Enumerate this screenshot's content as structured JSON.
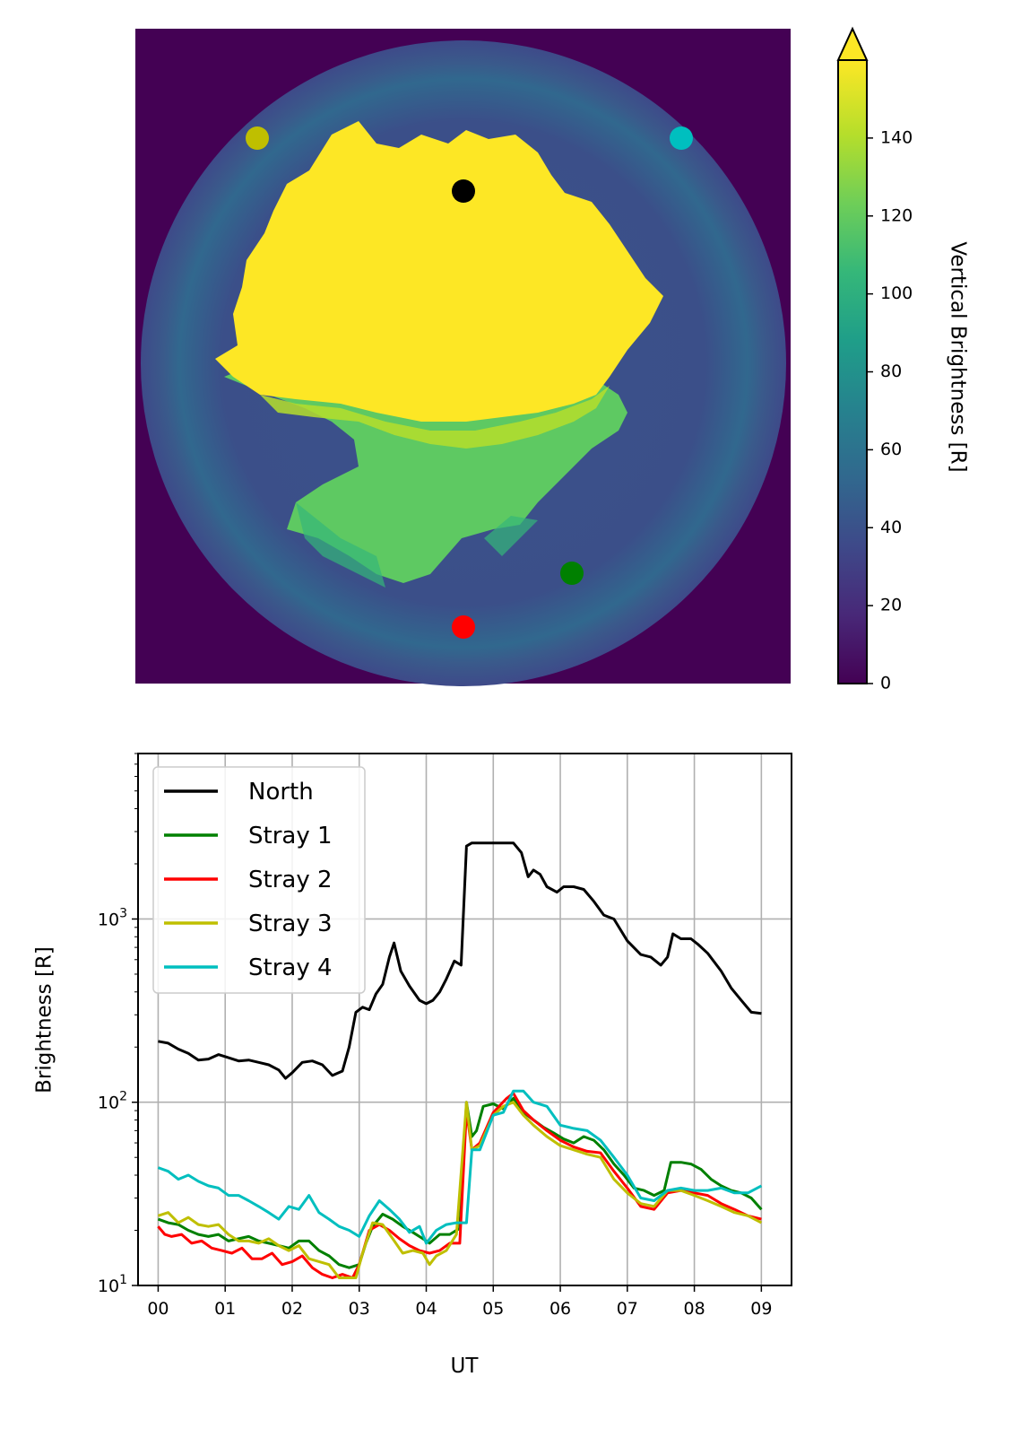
{
  "image_panel": {
    "colorbar": {
      "label": "Vertical Brightness [R]",
      "ticks": [
        0,
        20,
        40,
        60,
        80,
        100,
        120,
        140
      ],
      "range": [
        0,
        160
      ],
      "extend": "max",
      "colormap": [
        "#440154",
        "#482878",
        "#3e4989",
        "#31688e",
        "#26828e",
        "#1f9e89",
        "#35b779",
        "#6ece58",
        "#b5de2b",
        "#fde725"
      ]
    },
    "markers": [
      {
        "name": "North",
        "color": "#000000"
      },
      {
        "name": "Stray 1",
        "color": "#008000"
      },
      {
        "name": "Stray 2",
        "color": "#ff0000"
      },
      {
        "name": "Stray 3",
        "color": "#bfbf00"
      },
      {
        "name": "Stray 4",
        "color": "#00bfbf"
      }
    ]
  },
  "chart_data": {
    "type": "line",
    "xlabel": "UT",
    "ylabel": "Brightness [R]",
    "yscale": "log",
    "ylim": [
      10,
      8000
    ],
    "xlim": [
      -0.3,
      9.45
    ],
    "xticks": [
      "00",
      "01",
      "02",
      "03",
      "04",
      "05",
      "06",
      "07",
      "08",
      "09"
    ],
    "yticks": [
      {
        "value": 10,
        "base": "10",
        "exp": "1"
      },
      {
        "value": 100,
        "base": "10",
        "exp": "2"
      },
      {
        "value": 1000,
        "base": "10",
        "exp": "3"
      }
    ],
    "grid": true,
    "legend": "upper left",
    "series": [
      {
        "name": "North",
        "color": "#000000",
        "x": [
          0,
          0.15,
          0.3,
          0.45,
          0.6,
          0.75,
          0.9,
          1.05,
          1.2,
          1.35,
          1.5,
          1.65,
          1.8,
          1.9,
          2.0,
          2.15,
          2.3,
          2.45,
          2.6,
          2.75,
          2.85,
          2.95,
          3.05,
          3.15,
          3.25,
          3.35,
          3.45,
          3.52,
          3.62,
          3.75,
          3.9,
          4.0,
          4.1,
          4.2,
          4.3,
          4.42,
          4.52,
          4.6,
          4.68,
          4.8,
          5.0,
          5.2,
          5.3,
          5.42,
          5.52,
          5.6,
          5.7,
          5.8,
          5.95,
          6.05,
          6.2,
          6.35,
          6.5,
          6.65,
          6.8,
          7.0,
          7.2,
          7.35,
          7.5,
          7.6,
          7.68,
          7.8,
          7.95,
          8.05,
          8.2,
          8.4,
          8.55,
          8.7,
          8.85,
          9.0
        ],
        "y": [
          215,
          210,
          195,
          185,
          170,
          172,
          182,
          175,
          168,
          170,
          165,
          160,
          150,
          135,
          145,
          165,
          168,
          160,
          140,
          148,
          200,
          310,
          330,
          320,
          390,
          440,
          620,
          740,
          520,
          430,
          360,
          345,
          360,
          400,
          470,
          590,
          560,
          2500,
          2600,
          2600,
          2600,
          2600,
          2600,
          2300,
          1700,
          1850,
          1750,
          1500,
          1400,
          1500,
          1500,
          1450,
          1250,
          1050,
          1000,
          760,
          640,
          620,
          560,
          620,
          830,
          780,
          780,
          730,
          650,
          520,
          420,
          360,
          310,
          305
        ]
      },
      {
        "name": "Stray 1",
        "color": "#008000",
        "x": [
          0,
          0.15,
          0.3,
          0.45,
          0.6,
          0.75,
          0.9,
          1.05,
          1.2,
          1.35,
          1.5,
          1.65,
          1.8,
          1.95,
          2.1,
          2.25,
          2.4,
          2.55,
          2.7,
          2.85,
          3.0,
          3.1,
          3.2,
          3.35,
          3.5,
          3.65,
          3.8,
          3.95,
          4.05,
          4.2,
          4.35,
          4.5,
          4.6,
          4.68,
          4.75,
          4.85,
          5.0,
          5.15,
          5.3,
          5.45,
          5.6,
          5.75,
          5.9,
          6.05,
          6.2,
          6.35,
          6.5,
          6.65,
          6.8,
          6.95,
          7.1,
          7.25,
          7.4,
          7.55,
          7.65,
          7.8,
          7.95,
          8.1,
          8.25,
          8.4,
          8.55,
          8.7,
          8.85,
          9.0
        ],
        "y": [
          23,
          22,
          21.5,
          20,
          19,
          18.5,
          19,
          17.5,
          18,
          18.5,
          17.5,
          17,
          16.5,
          16,
          17.5,
          17.5,
          15.5,
          14.5,
          13,
          12.5,
          13,
          17,
          21,
          24.5,
          23,
          21,
          19.5,
          18,
          17,
          19,
          19,
          20.5,
          100,
          65,
          70,
          95,
          98,
          92,
          105,
          88,
          80,
          73,
          68,
          63,
          60,
          65,
          62,
          55,
          46,
          40,
          34,
          33,
          31,
          33,
          47,
          47,
          46,
          43,
          38,
          35,
          33,
          32,
          30,
          26
        ]
      },
      {
        "name": "Stray 2",
        "color": "#ff0000",
        "x": [
          0,
          0.1,
          0.2,
          0.35,
          0.5,
          0.65,
          0.8,
          0.95,
          1.1,
          1.25,
          1.4,
          1.55,
          1.7,
          1.85,
          2.0,
          2.15,
          2.3,
          2.45,
          2.6,
          2.75,
          2.9,
          3.0,
          3.15,
          3.3,
          3.45,
          3.6,
          3.75,
          3.9,
          4.05,
          4.2,
          4.35,
          4.5,
          4.6,
          4.68,
          4.8,
          5.0,
          5.2,
          5.3,
          5.45,
          5.6,
          5.8,
          6.0,
          6.2,
          6.4,
          6.6,
          6.8,
          7.0,
          7.2,
          7.4,
          7.6,
          7.8,
          8.0,
          8.2,
          8.4,
          8.6,
          8.8,
          9.0
        ],
        "y": [
          21,
          19,
          18.5,
          19,
          17,
          17.5,
          16,
          15.5,
          15,
          16,
          14,
          14,
          15,
          13,
          13.5,
          14.5,
          12.5,
          11.5,
          11,
          11.5,
          11,
          13,
          20,
          21.5,
          20,
          18,
          16.5,
          15.5,
          15,
          15.5,
          17,
          17,
          90,
          55,
          60,
          88,
          105,
          112,
          90,
          80,
          70,
          62,
          57,
          54,
          53,
          42,
          34,
          27,
          26,
          32,
          33,
          32,
          31,
          28,
          26,
          24,
          23
        ]
      },
      {
        "name": "Stray 3",
        "color": "#bfbf00",
        "x": [
          0,
          0.15,
          0.3,
          0.45,
          0.6,
          0.75,
          0.9,
          1.05,
          1.2,
          1.35,
          1.5,
          1.65,
          1.8,
          1.95,
          2.1,
          2.25,
          2.4,
          2.55,
          2.7,
          2.8,
          2.95,
          3.05,
          3.2,
          3.35,
          3.5,
          3.65,
          3.8,
          3.95,
          4.05,
          4.15,
          4.3,
          4.45,
          4.6,
          4.68,
          4.8,
          5.0,
          5.15,
          5.3,
          5.45,
          5.6,
          5.8,
          6.0,
          6.2,
          6.4,
          6.6,
          6.8,
          7.0,
          7.2,
          7.4,
          7.6,
          7.8,
          8.0,
          8.2,
          8.4,
          8.6,
          8.8,
          9.0
        ],
        "y": [
          24,
          25,
          22,
          23.5,
          21.5,
          21,
          21.5,
          19,
          17.5,
          17.5,
          17,
          18,
          16.5,
          15.5,
          16.5,
          14,
          13.5,
          13,
          11,
          11,
          11,
          15,
          22,
          21.5,
          18,
          15,
          15.5,
          15,
          13,
          14.5,
          15.5,
          19,
          100,
          55,
          58,
          85,
          95,
          100,
          85,
          75,
          65,
          58,
          55,
          52,
          50,
          38,
          32,
          28,
          27,
          33,
          33,
          31,
          29,
          27,
          25,
          24,
          22
        ]
      },
      {
        "name": "Stray 4",
        "color": "#00bfbf",
        "x": [
          0,
          0.15,
          0.3,
          0.45,
          0.6,
          0.75,
          0.9,
          1.05,
          1.2,
          1.35,
          1.5,
          1.65,
          1.8,
          1.95,
          2.1,
          2.25,
          2.4,
          2.55,
          2.7,
          2.85,
          3.0,
          3.15,
          3.3,
          3.45,
          3.6,
          3.75,
          3.9,
          4.0,
          4.15,
          4.3,
          4.45,
          4.6,
          4.68,
          4.8,
          5.0,
          5.15,
          5.3,
          5.45,
          5.6,
          5.8,
          6.0,
          6.2,
          6.4,
          6.6,
          6.8,
          7.0,
          7.2,
          7.4,
          7.6,
          7.8,
          8.0,
          8.2,
          8.4,
          8.6,
          8.8,
          9.0
        ],
        "y": [
          44,
          42,
          38,
          40,
          37,
          35,
          34,
          31,
          31,
          29,
          27,
          25,
          23,
          27,
          26,
          31,
          25,
          23,
          21,
          20,
          18.5,
          24,
          29,
          26,
          23,
          19.5,
          21,
          17,
          20,
          21.5,
          22,
          22,
          55,
          55,
          85,
          88,
          115,
          115,
          100,
          95,
          75,
          72,
          70,
          62,
          50,
          40,
          30,
          29,
          33,
          34,
          33,
          33,
          34,
          32,
          32,
          35
        ]
      }
    ]
  }
}
